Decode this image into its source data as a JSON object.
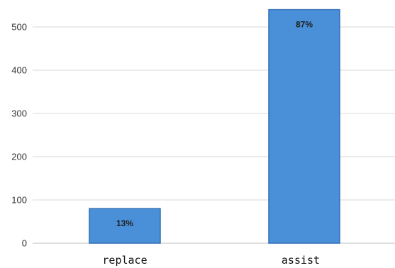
{
  "chart_data": {
    "type": "bar",
    "title": "",
    "xlabel": "",
    "ylabel": "",
    "categories": [
      "replace",
      "assist"
    ],
    "values": [
      80,
      540
    ],
    "data_labels": [
      "13%",
      "87%"
    ],
    "ylim": [
      0,
      500
    ],
    "yticks": [
      0,
      100,
      200,
      300,
      400,
      500
    ],
    "grid": true,
    "legend": "none",
    "colors": {
      "bar_fill": "#4a90d9",
      "bar_stroke": "#2f6fb5",
      "grid": "#d9d9d9",
      "axis": "#bfbfbf"
    }
  }
}
